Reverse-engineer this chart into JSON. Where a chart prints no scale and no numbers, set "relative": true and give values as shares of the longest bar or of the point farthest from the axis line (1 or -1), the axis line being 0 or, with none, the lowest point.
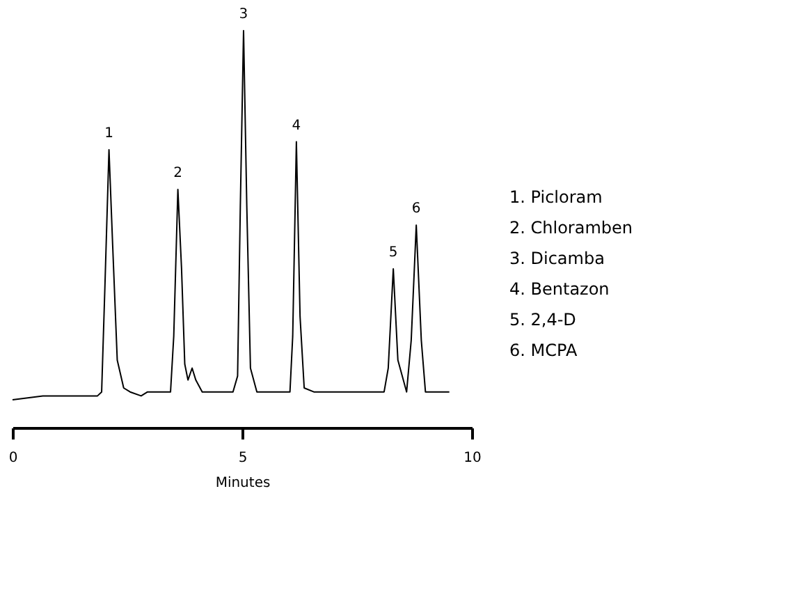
{
  "chart_data": {
    "type": "line",
    "relative": true,
    "xlabel": "Minutes",
    "xlim": [
      0,
      10
    ],
    "xticks": [
      0,
      5,
      10
    ],
    "grid": false,
    "tick_labels": "x",
    "line_style": "solid",
    "marker": "none",
    "x": [
      0,
      0.66,
      1.13,
      1.85,
      1.94,
      2.01,
      2.1,
      2.18,
      2.28,
      2.42,
      2.56,
      2.8,
      2.94,
      3.06,
      3.21,
      3.32,
      3.44,
      3.51,
      3.6,
      3.68,
      3.75,
      3.82,
      3.91,
      3.99,
      4.13,
      4.37,
      4.8,
      4.9,
      4.96,
      5.03,
      5.1,
      5.18,
      5.32,
      5.61,
      6.04,
      6.1,
      6.18,
      6.26,
      6.35,
      6.56,
      6.85,
      7.04,
      8.09,
      8.18,
      8.29,
      8.39,
      8.58,
      8.68,
      8.79,
      8.9,
      8.99,
      9.23,
      9.51
    ],
    "series": [
      {
        "color": "#000000",
        "values": [
          0.07,
          0.08,
          0.08,
          0.08,
          0.09,
          0.35,
          0.7,
          0.46,
          0.17,
          0.1,
          0.09,
          0.08,
          0.09,
          0.09,
          0.09,
          0.09,
          0.09,
          0.23,
          0.6,
          0.4,
          0.16,
          0.12,
          0.15,
          0.12,
          0.09,
          0.09,
          0.09,
          0.13,
          0.56,
          1.0,
          0.56,
          0.15,
          0.09,
          0.09,
          0.09,
          0.23,
          0.72,
          0.28,
          0.1,
          0.09,
          0.09,
          0.09,
          0.09,
          0.15,
          0.4,
          0.17,
          0.09,
          0.22,
          0.51,
          0.22,
          0.09,
          0.09,
          0.09
        ]
      }
    ],
    "annotations": [
      {
        "text": "1",
        "x": 2.1,
        "y": 0.7
      },
      {
        "text": "2",
        "x": 3.6,
        "y": 0.6
      },
      {
        "text": "3",
        "x": 5.03,
        "y": 1.0
      },
      {
        "text": "4",
        "x": 6.18,
        "y": 0.72
      },
      {
        "text": "5",
        "x": 8.29,
        "y": 0.4
      },
      {
        "text": "6",
        "x": 8.79,
        "y": 0.51
      },
      "1. Picloram",
      "2. Chloramben",
      "3. Dicamba",
      "4. Bentazon",
      "5. 2,4-D",
      "6. MCPA"
    ]
  }
}
